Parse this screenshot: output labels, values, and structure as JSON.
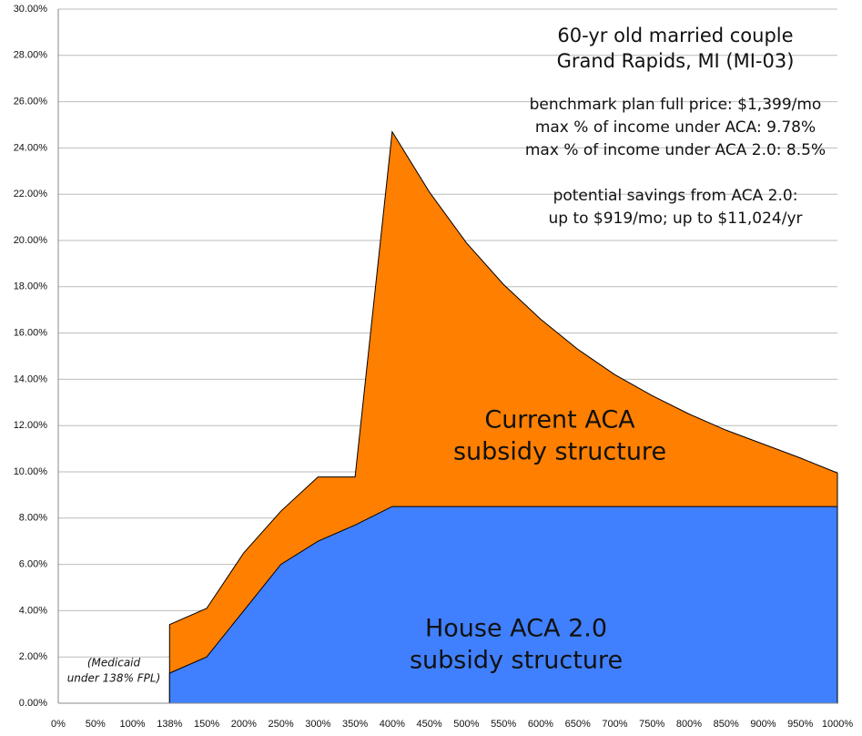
{
  "chart_data": {
    "type": "area",
    "categories": [
      "0%",
      "50%",
      "100%",
      "138%",
      "150%",
      "200%",
      "250%",
      "300%",
      "350%",
      "400%",
      "450%",
      "500%",
      "550%",
      "600%",
      "650%",
      "700%",
      "750%",
      "800%",
      "850%",
      "900%",
      "950%",
      "1000%"
    ],
    "series": [
      {
        "name": "Current ACA subsidy structure",
        "color": "#ff7f00",
        "values": [
          null,
          null,
          null,
          3.4,
          4.1,
          6.5,
          8.3,
          9.78,
          9.78,
          24.7,
          22.1,
          19.9,
          18.1,
          16.6,
          15.3,
          14.2,
          13.3,
          12.5,
          11.8,
          11.2,
          10.6,
          9.95
        ]
      },
      {
        "name": "House ACA 2.0 subsidy structure",
        "color": "#4080ff",
        "values": [
          null,
          null,
          null,
          1.3,
          2.0,
          4.0,
          6.0,
          7.0,
          7.7,
          8.5,
          8.5,
          8.5,
          8.5,
          8.5,
          8.5,
          8.5,
          8.5,
          8.5,
          8.5,
          8.5,
          8.5,
          8.5
        ]
      }
    ],
    "ylim": [
      0,
      30
    ],
    "yticks": [
      {
        "value": 0,
        "label": "0.00%"
      },
      {
        "value": 2,
        "label": "2.00%"
      },
      {
        "value": 4,
        "label": "4.00%"
      },
      {
        "value": 6,
        "label": "6.00%"
      },
      {
        "value": 8,
        "label": "8.00%"
      },
      {
        "value": 10,
        "label": "10.00%"
      },
      {
        "value": 12,
        "label": "12.00%"
      },
      {
        "value": 14,
        "label": "14.00%"
      },
      {
        "value": 16,
        "label": "16.00%"
      },
      {
        "value": 18,
        "label": "18.00%"
      },
      {
        "value": 20,
        "label": "20.00%"
      },
      {
        "value": 22,
        "label": "22.00%"
      },
      {
        "value": 24,
        "label": "24.00%"
      },
      {
        "value": 26,
        "label": "26.00%"
      },
      {
        "value": 28,
        "label": "28.00%"
      },
      {
        "value": 30,
        "label": "30.00%"
      }
    ],
    "grid": true,
    "annotations": [
      {
        "lines": [
          "60-yr old married couple",
          "Grand Rapids, MI (MI-03)"
        ]
      },
      {
        "lines": [
          "benchmark plan full price: $1,399/mo",
          "max % of income under ACA: 9.78%",
          "max % of income under ACA 2.0: 8.5%"
        ]
      },
      {
        "lines": [
          "potential savings from ACA 2.0:",
          "up to $919/mo; up to $11,024/yr"
        ]
      },
      {
        "lines": [
          "Current ACA",
          "subsidy structure"
        ]
      },
      {
        "lines": [
          "House ACA 2.0",
          "subsidy structure"
        ]
      },
      {
        "lines": [
          "(Medicaid",
          "under 138% FPL)"
        ]
      }
    ]
  }
}
